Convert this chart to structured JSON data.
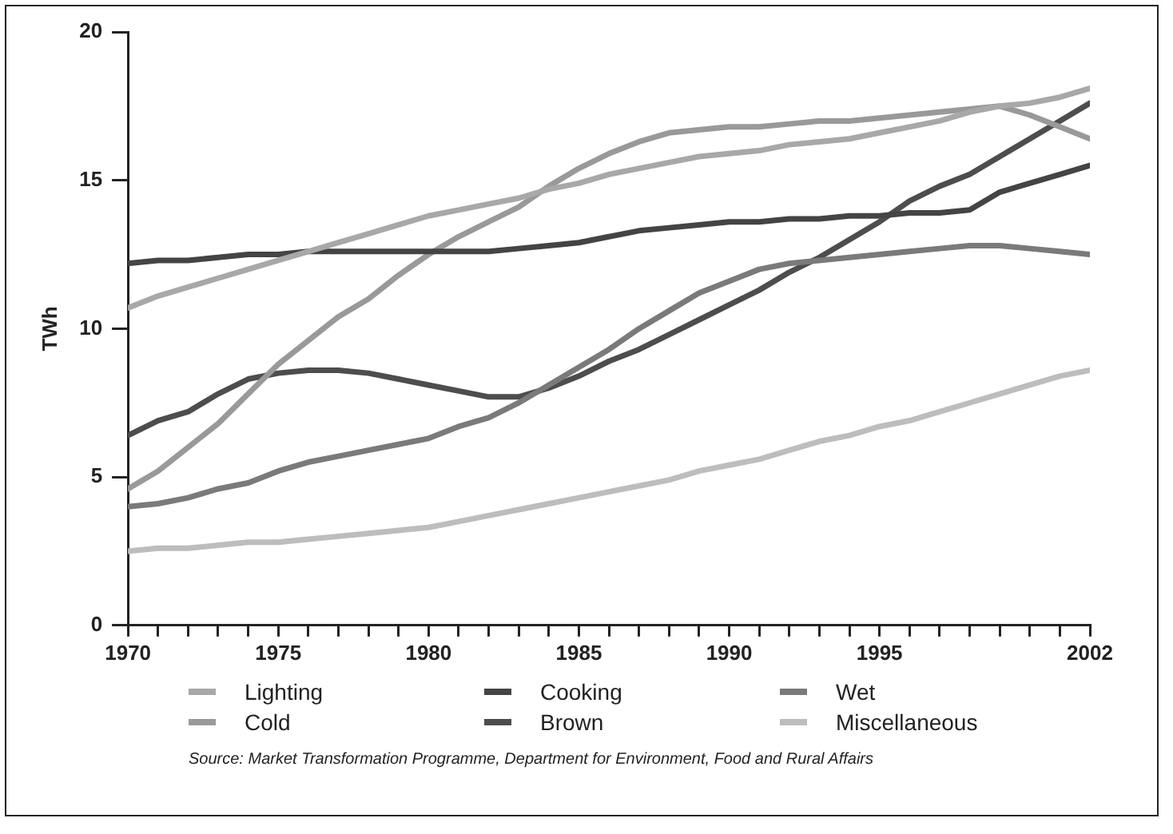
{
  "chart_data": {
    "type": "line",
    "ylabel": "TWh",
    "x": [
      1970,
      1971,
      1972,
      1973,
      1974,
      1975,
      1976,
      1977,
      1978,
      1979,
      1980,
      1981,
      1982,
      1983,
      1984,
      1985,
      1986,
      1987,
      1988,
      1989,
      1990,
      1991,
      1992,
      1993,
      1994,
      1995,
      1996,
      1997,
      1998,
      1999,
      2000,
      2001,
      2002
    ],
    "series": [
      {
        "name": "Lighting",
        "color": "#a8a8a8",
        "values": [
          10.7,
          11.1,
          11.4,
          11.7,
          12.0,
          12.3,
          12.6,
          12.9,
          13.2,
          13.5,
          13.8,
          14.0,
          14.2,
          14.4,
          14.7,
          14.9,
          15.2,
          15.4,
          15.6,
          15.8,
          15.9,
          16.0,
          16.2,
          16.3,
          16.4,
          16.6,
          16.8,
          17.0,
          17.3,
          17.5,
          17.6,
          17.8,
          18.1
        ]
      },
      {
        "name": "Cooking",
        "color": "#444444",
        "values": [
          12.2,
          12.3,
          12.3,
          12.4,
          12.5,
          12.5,
          12.6,
          12.6,
          12.6,
          12.6,
          12.6,
          12.6,
          12.6,
          12.7,
          12.8,
          12.9,
          13.1,
          13.3,
          13.4,
          13.5,
          13.6,
          13.6,
          13.7,
          13.7,
          13.8,
          13.8,
          13.9,
          13.9,
          14.0,
          14.6,
          14.9,
          15.2,
          15.5
        ]
      },
      {
        "name": "Wet",
        "color": "#7a7a7a",
        "values": [
          4.0,
          4.1,
          4.3,
          4.6,
          4.8,
          5.2,
          5.5,
          5.7,
          5.9,
          6.1,
          6.3,
          6.7,
          7.0,
          7.5,
          8.1,
          8.7,
          9.3,
          10.0,
          10.6,
          11.2,
          11.6,
          12.0,
          12.2,
          12.3,
          12.4,
          12.5,
          12.6,
          12.7,
          12.8,
          12.8,
          12.7,
          12.6,
          12.5
        ]
      },
      {
        "name": "Cold",
        "color": "#999999",
        "values": [
          4.6,
          5.2,
          6.0,
          6.8,
          7.8,
          8.8,
          9.6,
          10.4,
          11.0,
          11.8,
          12.5,
          13.1,
          13.6,
          14.1,
          14.8,
          15.4,
          15.9,
          16.3,
          16.6,
          16.7,
          16.8,
          16.8,
          16.9,
          17.0,
          17.0,
          17.1,
          17.2,
          17.3,
          17.4,
          17.5,
          17.2,
          16.8,
          16.4
        ]
      },
      {
        "name": "Brown",
        "color": "#4d4d4d",
        "values": [
          6.4,
          6.9,
          7.2,
          7.8,
          8.3,
          8.5,
          8.6,
          8.6,
          8.5,
          8.3,
          8.1,
          7.9,
          7.7,
          7.7,
          8.0,
          8.4,
          8.9,
          9.3,
          9.8,
          10.3,
          10.8,
          11.3,
          11.9,
          12.4,
          13.0,
          13.6,
          14.3,
          14.8,
          15.2,
          15.8,
          16.4,
          17.0,
          17.6
        ]
      },
      {
        "name": "Miscellaneous",
        "color": "#bdbdbd",
        "values": [
          2.5,
          2.6,
          2.6,
          2.7,
          2.8,
          2.8,
          2.9,
          3.0,
          3.1,
          3.2,
          3.3,
          3.5,
          3.7,
          3.9,
          4.1,
          4.3,
          4.5,
          4.7,
          4.9,
          5.2,
          5.4,
          5.6,
          5.9,
          6.2,
          6.4,
          6.7,
          6.9,
          7.2,
          7.5,
          7.8,
          8.1,
          8.4,
          8.6
        ]
      }
    ],
    "xlim": [
      1970,
      2002
    ],
    "xticks": [
      1970,
      {
        "value": 1971,
        "label": null
      },
      {
        "value": 1972,
        "label": null
      },
      {
        "value": 1973,
        "label": null
      },
      {
        "value": 1974,
        "label": null
      },
      1975,
      {
        "value": 1976,
        "label": null
      },
      {
        "value": 1977,
        "label": null
      },
      {
        "value": 1978,
        "label": null
      },
      {
        "value": 1979,
        "label": null
      },
      1980,
      {
        "value": 1981,
        "label": null
      },
      {
        "value": 1982,
        "label": null
      },
      {
        "value": 1983,
        "label": null
      },
      {
        "value": 1984,
        "label": null
      },
      1985,
      {
        "value": 1986,
        "label": null
      },
      {
        "value": 1987,
        "label": null
      },
      {
        "value": 1988,
        "label": null
      },
      {
        "value": 1989,
        "label": null
      },
      1990,
      {
        "value": 1991,
        "label": null
      },
      {
        "value": 1992,
        "label": null
      },
      {
        "value": 1993,
        "label": null
      },
      {
        "value": 1994,
        "label": null
      },
      1995,
      {
        "value": 1996,
        "label": null
      },
      {
        "value": 1997,
        "label": null
      },
      {
        "value": 1998,
        "label": null
      },
      {
        "value": 1999,
        "label": null
      },
      {
        "value": 2000,
        "label": null
      },
      {
        "value": 2001,
        "label": null
      },
      2002
    ],
    "ylim": [
      0,
      20
    ],
    "yticks": [
      0,
      5,
      10,
      15,
      20
    ],
    "grid": false,
    "legend": "bottom",
    "marker": "none",
    "line_style": "solid",
    "annotations": [
      "Source: Market Transformation Programme, Department for Environment, Food and Rural Affairs"
    ]
  }
}
